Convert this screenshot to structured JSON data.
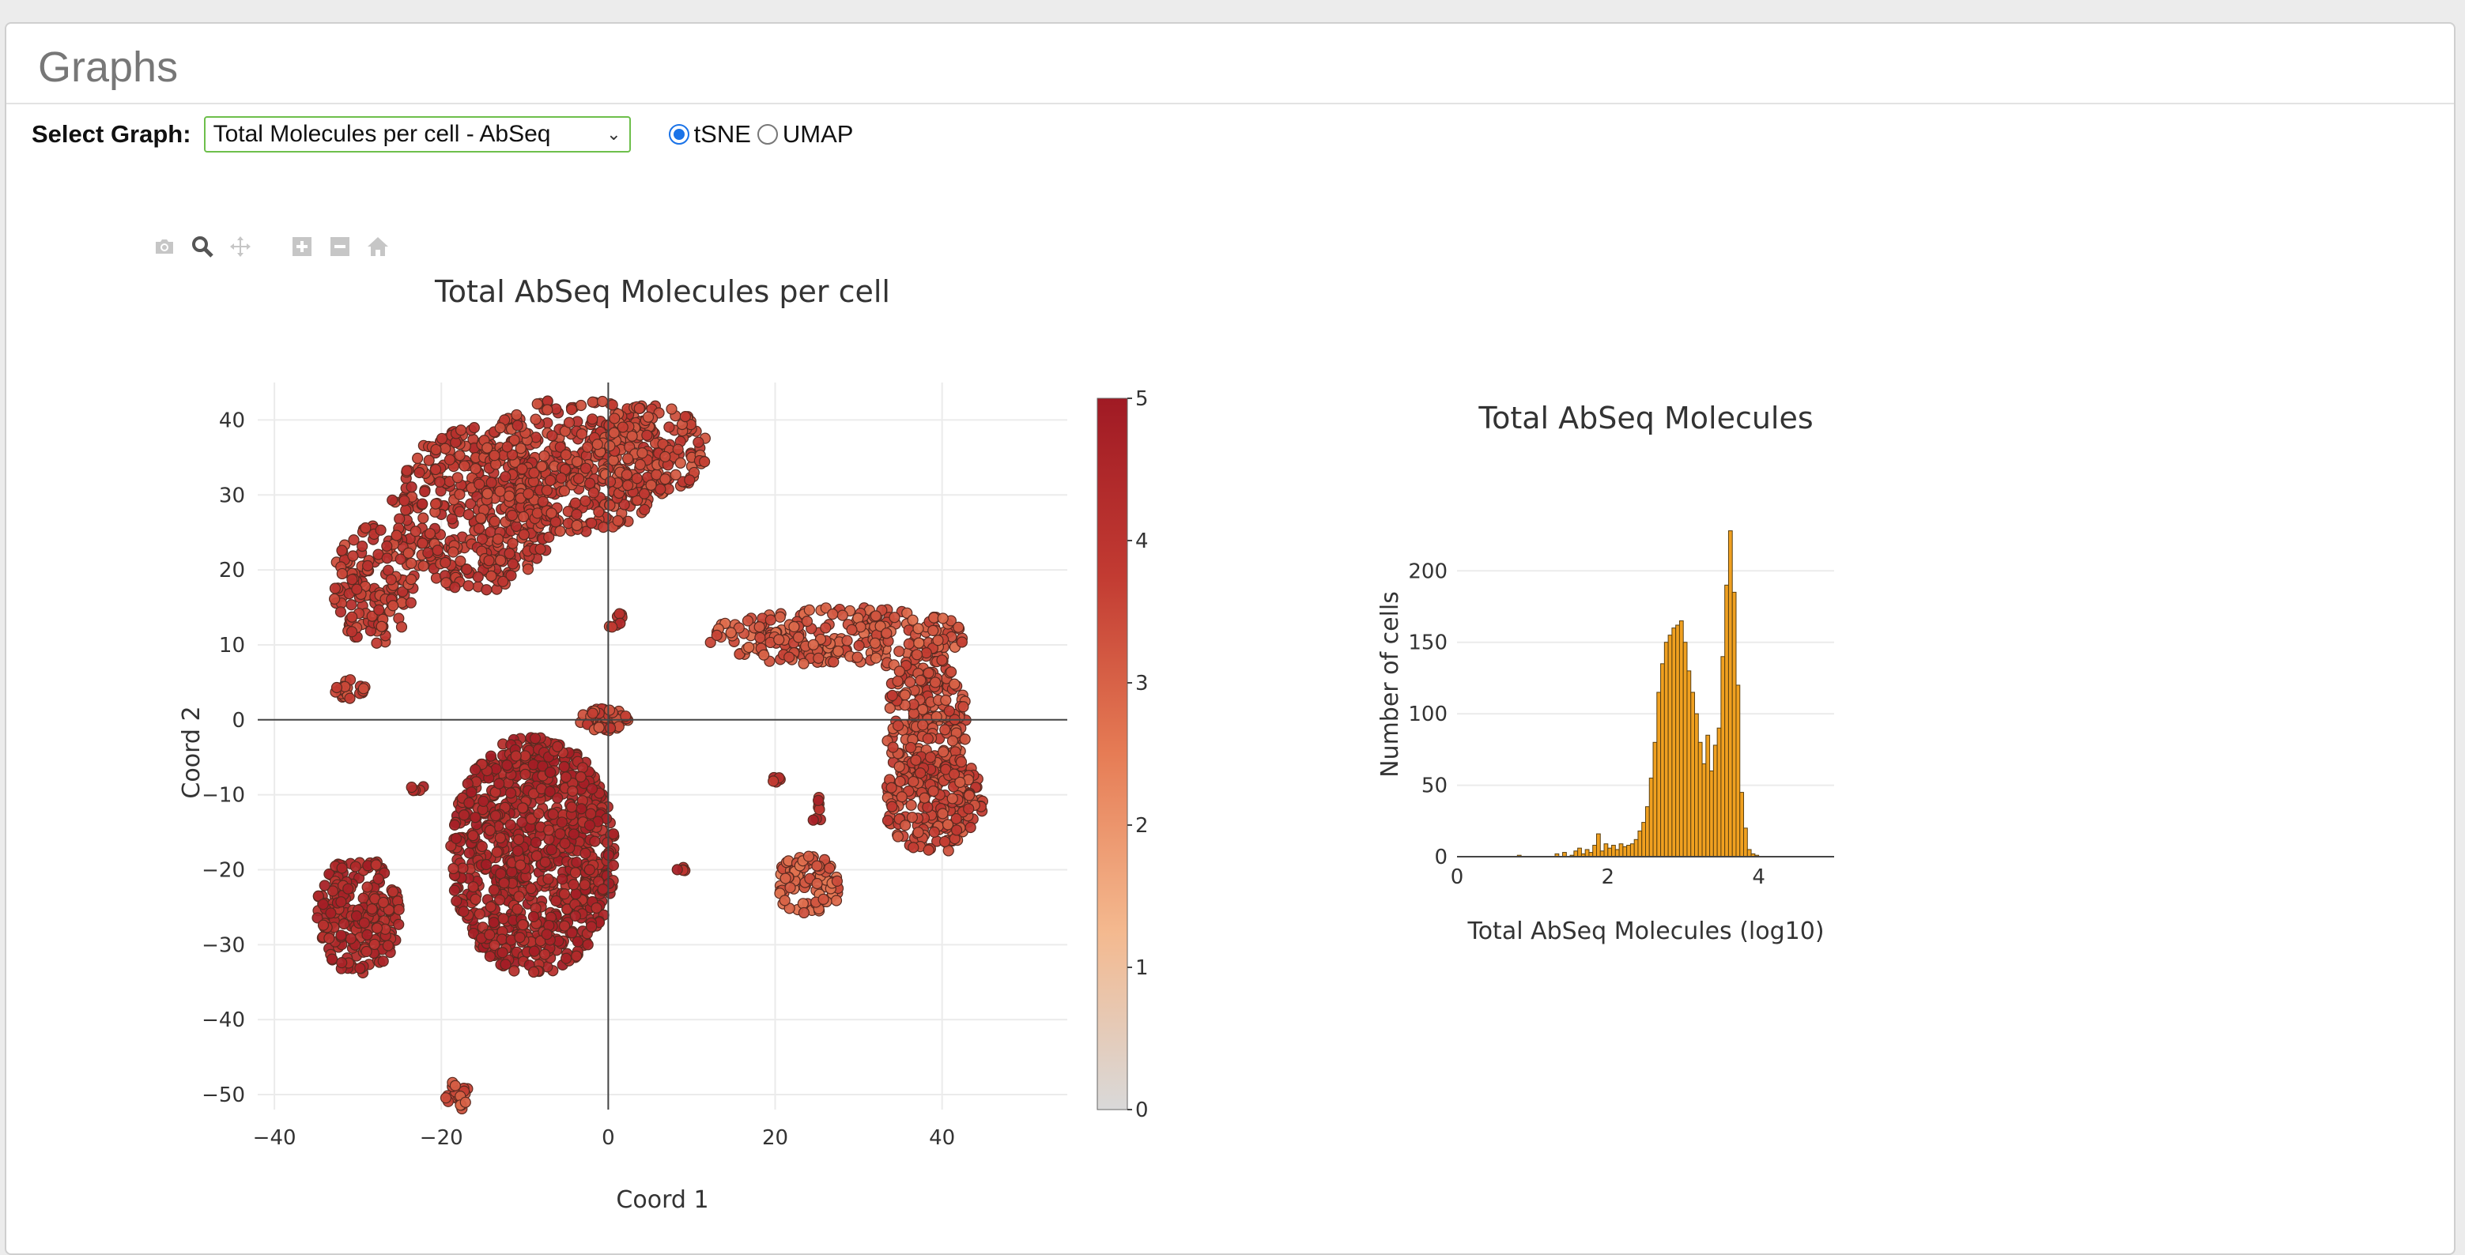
{
  "panel": {
    "title": "Graphs"
  },
  "controls": {
    "select_label": "Select Graph:",
    "selected_graph": "Total Molecules per cell - AbSeq",
    "radio_options": [
      {
        "label": "tSNE",
        "checked": true
      },
      {
        "label": "UMAP",
        "checked": false
      }
    ]
  },
  "modebar": {
    "icons": [
      "camera-icon",
      "zoom-icon",
      "pan-icon",
      "zoom-in-icon",
      "zoom-out-icon",
      "home-icon"
    ]
  },
  "chart_data": [
    {
      "type": "scatter",
      "title": "Total AbSeq Molecules per cell",
      "xlabel": "Coord 1",
      "ylabel": "Coord 2",
      "xlim": [
        -42,
        55
      ],
      "ylim": [
        -52,
        45
      ],
      "xticks": [
        -40,
        -20,
        0,
        20,
        40
      ],
      "yticks": [
        40,
        30,
        20,
        10,
        0,
        -10,
        -20,
        -30,
        -40,
        -50
      ],
      "grid": true,
      "colorbar": {
        "min": 0,
        "max": 5,
        "ticks": [
          0,
          1,
          2,
          3,
          4,
          5
        ],
        "colors": [
          "#d9d9d9",
          "#f4b98f",
          "#e67c55",
          "#c23b32",
          "#a01a24"
        ]
      },
      "clusters": [
        {
          "cx": -16,
          "cy": 28,
          "rx": 10,
          "ry": 11,
          "n": 380,
          "value": 3.9
        },
        {
          "cx": -4,
          "cy": 34,
          "rx": 12,
          "ry": 9,
          "n": 380,
          "value": 3.7
        },
        {
          "cx": 5,
          "cy": 36,
          "rx": 7,
          "ry": 6,
          "n": 150,
          "value": 3.5
        },
        {
          "cx": -28,
          "cy": 18,
          "rx": 5,
          "ry": 8,
          "n": 140,
          "value": 3.8
        },
        {
          "cx": 28,
          "cy": 11,
          "rx": 16,
          "ry": 4,
          "n": 240,
          "value": 3.2
        },
        {
          "cx": 38,
          "cy": 0,
          "rx": 5,
          "ry": 9,
          "n": 220,
          "value": 3.4
        },
        {
          "cx": 39,
          "cy": -11,
          "rx": 6,
          "ry": 7,
          "n": 200,
          "value": 3.5
        },
        {
          "cx": -9,
          "cy": -18,
          "rx": 10,
          "ry": 16,
          "n": 900,
          "value": 4.5
        },
        {
          "cx": -30,
          "cy": -26,
          "rx": 5,
          "ry": 8,
          "n": 220,
          "value": 4.4
        },
        {
          "cx": 24,
          "cy": -22,
          "rx": 4,
          "ry": 4,
          "n": 90,
          "value": 3.0
        },
        {
          "cx": -0.5,
          "cy": 0,
          "rx": 3,
          "ry": 1.5,
          "n": 60,
          "value": 3.5
        },
        {
          "cx": -18,
          "cy": -50,
          "rx": 1.5,
          "ry": 2,
          "n": 20,
          "value": 3.3
        },
        {
          "cx": -31,
          "cy": 4,
          "rx": 2,
          "ry": 1.5,
          "n": 20,
          "value": 3.5
        },
        {
          "cx": 1,
          "cy": 13,
          "rx": 1,
          "ry": 1.5,
          "n": 8,
          "value": 4.0
        },
        {
          "cx": 25,
          "cy": -12,
          "rx": 0.7,
          "ry": 2,
          "n": 8,
          "value": 4.3
        },
        {
          "cx": 20,
          "cy": -8,
          "rx": 1,
          "ry": 0.5,
          "n": 5,
          "value": 4.2
        },
        {
          "cx": -23,
          "cy": -9,
          "rx": 1,
          "ry": 0.5,
          "n": 5,
          "value": 4.4
        },
        {
          "cx": 9,
          "cy": -20,
          "rx": 0.8,
          "ry": 0.5,
          "n": 5,
          "value": 4.3
        }
      ]
    },
    {
      "type": "bar",
      "title": "Total AbSeq Molecules",
      "xlabel": "Total AbSeq Molecules (log10)",
      "ylabel": "Number of cells",
      "xlim": [
        0,
        5
      ],
      "ylim": [
        0,
        230
      ],
      "xticks": [
        0,
        2,
        4
      ],
      "yticks": [
        0,
        50,
        100,
        150,
        200
      ],
      "bar_color": "#f0a020",
      "bins_start": 0,
      "bin_width": 0.05,
      "values": [
        0,
        0,
        0,
        0,
        0,
        0,
        0,
        0,
        0,
        0,
        0,
        0,
        0,
        0,
        0,
        0,
        1,
        0,
        0,
        0,
        0,
        0,
        0,
        0,
        0,
        0,
        2,
        0,
        3,
        0,
        1,
        4,
        6,
        2,
        5,
        3,
        8,
        16,
        4,
        9,
        6,
        8,
        5,
        9,
        7,
        8,
        9,
        12,
        18,
        24,
        35,
        55,
        80,
        115,
        135,
        150,
        155,
        160,
        162,
        165,
        150,
        130,
        115,
        100,
        80,
        65,
        85,
        60,
        78,
        90,
        140,
        190,
        228,
        185,
        120,
        45,
        20,
        5,
        2,
        1,
        0
      ]
    }
  ]
}
